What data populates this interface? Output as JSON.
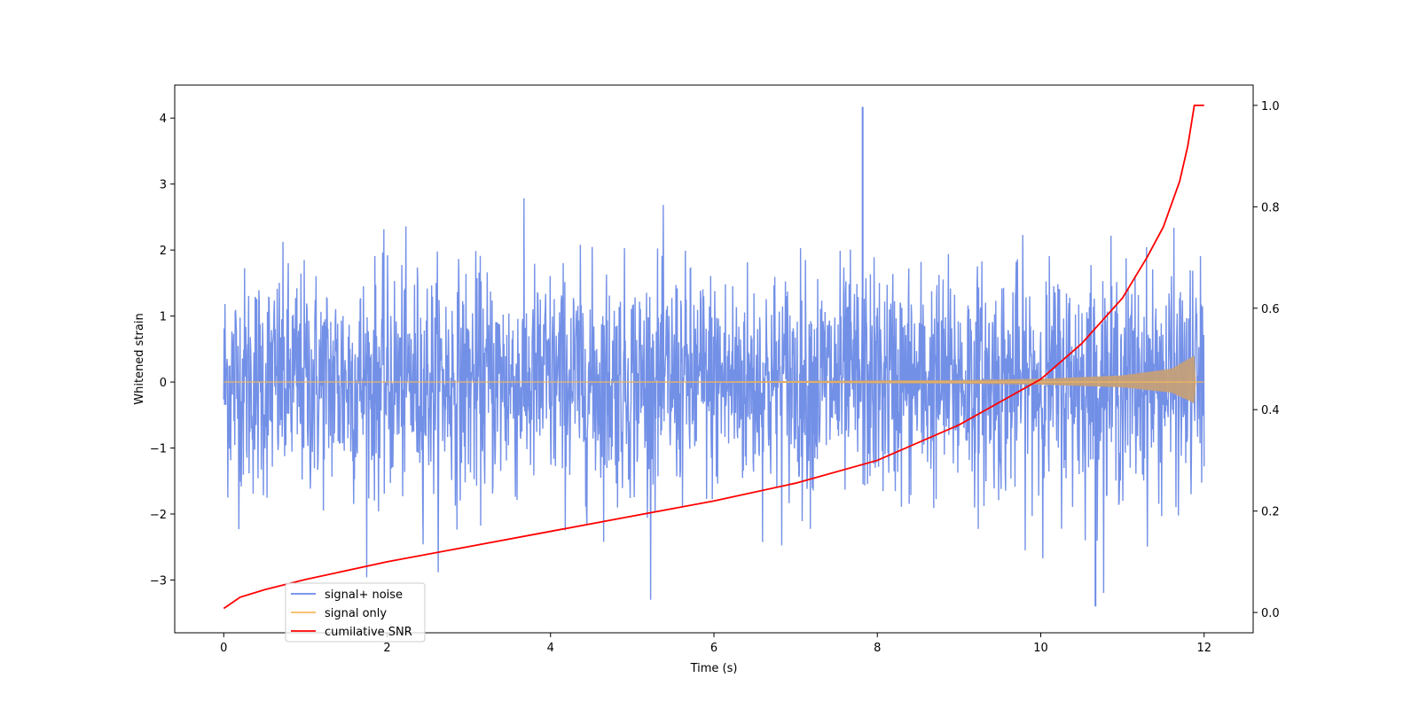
{
  "chart_data": {
    "type": "line",
    "title": "",
    "xlabel": "Time (s)",
    "ylabel": "Whitened strain",
    "y2label": "",
    "xlim": [
      -0.6,
      12.6
    ],
    "ylim": [
      -3.8,
      4.5
    ],
    "y2lim": [
      -0.04,
      1.04
    ],
    "x_ticks": [
      0,
      2,
      4,
      6,
      8,
      10,
      12
    ],
    "x_tick_labels": [
      "0",
      "2",
      "4",
      "6",
      "8",
      "10",
      "12"
    ],
    "y_ticks": [
      -3,
      -2,
      -1,
      0,
      1,
      2,
      3,
      4
    ],
    "y_tick_labels": [
      "−3",
      "−2",
      "−1",
      "0",
      "1",
      "2",
      "3",
      "4"
    ],
    "y2_ticks": [
      0.0,
      0.2,
      0.4,
      0.6,
      0.8,
      1.0
    ],
    "y2_tick_labels": [
      "0.0",
      "0.2",
      "0.4",
      "0.6",
      "0.8",
      "1.0"
    ],
    "grid": false,
    "legend_placement": "lower-left",
    "series": [
      {
        "name": "signal+ noise",
        "axis": "left",
        "color": "#6b8ae6",
        "description_kind": "noise",
        "x_range": [
          0,
          12
        ],
        "typical_range": [
          -1.5,
          1.5
        ],
        "max_value": 4.17,
        "min_value": -3.4
      },
      {
        "name": "signal only",
        "axis": "left",
        "color": "#f5b95b",
        "description_kind": "chirp",
        "x_range": [
          0,
          12
        ],
        "points": [
          [
            0,
            0.0
          ],
          [
            6,
            0.01
          ],
          [
            9,
            0.03
          ],
          [
            10,
            0.05
          ],
          [
            11,
            0.1
          ],
          [
            11.6,
            0.2
          ],
          [
            11.88,
            0.4
          ],
          [
            11.9,
            0.0
          ],
          [
            12,
            0.0
          ]
        ]
      },
      {
        "name": "cumilative SNR",
        "axis": "right",
        "color": "#ff0000",
        "points": [
          [
            0,
            0.008
          ],
          [
            0.2,
            0.03
          ],
          [
            0.5,
            0.045
          ],
          [
            1,
            0.065
          ],
          [
            2,
            0.1
          ],
          [
            3,
            0.13
          ],
          [
            4,
            0.16
          ],
          [
            5,
            0.19
          ],
          [
            6,
            0.22
          ],
          [
            7,
            0.255
          ],
          [
            8,
            0.3
          ],
          [
            9,
            0.37
          ],
          [
            10,
            0.46
          ],
          [
            10.5,
            0.53
          ],
          [
            11,
            0.62
          ],
          [
            11.3,
            0.7
          ],
          [
            11.5,
            0.76
          ],
          [
            11.7,
            0.85
          ],
          [
            11.8,
            0.92
          ],
          [
            11.88,
            1.0
          ],
          [
            12,
            1.0
          ]
        ]
      }
    ]
  }
}
